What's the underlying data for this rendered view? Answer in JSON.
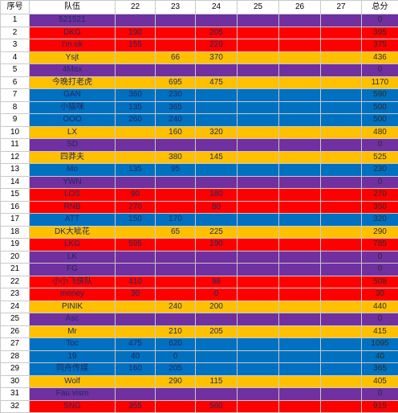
{
  "headers": [
    "序号",
    "队伍",
    "22",
    "23",
    "24",
    "25",
    "26",
    "27",
    "总分"
  ],
  "colors": {
    "purple": "#7030a0",
    "red": "#ff0000",
    "orange": "#ffc000",
    "blue": "#0070c0"
  },
  "rows": [
    {
      "n": "1",
      "team": "521521",
      "d22": "",
      "d23": "",
      "d24": "",
      "total": "0",
      "color": "purple"
    },
    {
      "n": "2",
      "team": "DKG",
      "d22": "190",
      "d23": "",
      "d24": "205",
      "total": "395",
      "color": "red"
    },
    {
      "n": "3",
      "team": "I'm ok",
      "d22": "155",
      "d23": "",
      "d24": "220",
      "total": "375",
      "color": "red"
    },
    {
      "n": "4",
      "team": "Ysjt",
      "d22": "",
      "d23": "66",
      "d24": "370",
      "total": "436",
      "color": "orange"
    },
    {
      "n": "5",
      "team": "4Max",
      "d22": "",
      "d23": "",
      "d24": "",
      "total": "0",
      "color": "purple"
    },
    {
      "n": "6",
      "team": "今晚打老虎",
      "d22": "",
      "d23": "695",
      "d24": "475",
      "total": "1170",
      "color": "orange"
    },
    {
      "n": "7",
      "team": "GAN",
      "d22": "360",
      "d23": "230",
      "d24": "",
      "total": "590",
      "color": "blue"
    },
    {
      "n": "8",
      "team": "小猫咪",
      "d22": "135",
      "d23": "365",
      "d24": "",
      "total": "500",
      "color": "blue"
    },
    {
      "n": "9",
      "team": "OOO",
      "d22": "260",
      "d23": "240",
      "d24": "",
      "total": "500",
      "color": "blue"
    },
    {
      "n": "10",
      "team": "LX",
      "d22": "",
      "d23": "160",
      "d24": "320",
      "total": "480",
      "color": "orange"
    },
    {
      "n": "11",
      "team": "SD",
      "d22": "",
      "d23": "",
      "d24": "",
      "total": "0",
      "color": "purple"
    },
    {
      "n": "12",
      "team": "四莽夫",
      "d22": "",
      "d23": "380",
      "d24": "145",
      "total": "525",
      "color": "orange"
    },
    {
      "n": "13",
      "team": "Mo",
      "d22": "135",
      "d23": "95",
      "d24": "",
      "total": "230",
      "color": "blue"
    },
    {
      "n": "14",
      "team": "YWN",
      "d22": "",
      "d23": "",
      "d24": "",
      "total": "0",
      "color": "purple"
    },
    {
      "n": "15",
      "team": "LOS",
      "d22": "90",
      "d23": "",
      "d24": "180",
      "total": "270",
      "color": "red"
    },
    {
      "n": "16",
      "team": "RNB",
      "d22": "270",
      "d23": "",
      "d24": "80",
      "total": "350",
      "color": "red"
    },
    {
      "n": "17",
      "team": "ATT",
      "d22": "150",
      "d23": "170",
      "d24": "",
      "total": "320",
      "color": "blue"
    },
    {
      "n": "18",
      "team": "DK大呲花",
      "d22": "",
      "d23": "65",
      "d24": "225",
      "total": "290",
      "color": "orange"
    },
    {
      "n": "19",
      "team": "LKG",
      "d22": "595",
      "d23": "",
      "d24": "190",
      "total": "785",
      "color": "red"
    },
    {
      "n": "20",
      "team": "LK",
      "d22": "",
      "d23": "",
      "d24": "",
      "total": "0",
      "color": "purple"
    },
    {
      "n": "21",
      "team": "FG",
      "d22": "",
      "d23": "",
      "d24": "",
      "total": "0",
      "color": "purple"
    },
    {
      "n": "22",
      "team": "小小飞侠队",
      "d22": "410",
      "d23": "",
      "d24": "98",
      "total": "508",
      "color": "red"
    },
    {
      "n": "23",
      "team": "money",
      "d22": "30",
      "d23": "",
      "d24": "0",
      "total": "30",
      "color": "red"
    },
    {
      "n": "24",
      "team": "PINIK",
      "d22": "",
      "d23": "240",
      "d24": "200",
      "total": "440",
      "color": "orange"
    },
    {
      "n": "25",
      "team": "Asc",
      "d22": "",
      "d23": "",
      "d24": "",
      "total": "0",
      "color": "purple"
    },
    {
      "n": "26",
      "team": "Mr",
      "d22": "",
      "d23": "210",
      "d24": "205",
      "total": "415",
      "color": "orange"
    },
    {
      "n": "27",
      "team": "Toc",
      "d22": "475",
      "d23": "620",
      "d24": "",
      "total": "1095",
      "color": "blue"
    },
    {
      "n": "28",
      "team": "19",
      "d22": "40",
      "d23": "0",
      "d24": "",
      "total": "40",
      "color": "blue"
    },
    {
      "n": "29",
      "team": "同舟传媒",
      "d22": "160",
      "d23": "205",
      "d24": "",
      "total": "365",
      "color": "blue"
    },
    {
      "n": "30",
      "team": "Wolf",
      "d22": "",
      "d23": "290",
      "d24": "115",
      "total": "405",
      "color": "orange"
    },
    {
      "n": "31",
      "team": "Fau vism",
      "d22": "",
      "d23": "",
      "d24": "",
      "total": "0",
      "color": "purple"
    },
    {
      "n": "32",
      "team": "SNG",
      "d22": "355",
      "d23": "",
      "d24": "560",
      "total": "915",
      "color": "red"
    }
  ]
}
